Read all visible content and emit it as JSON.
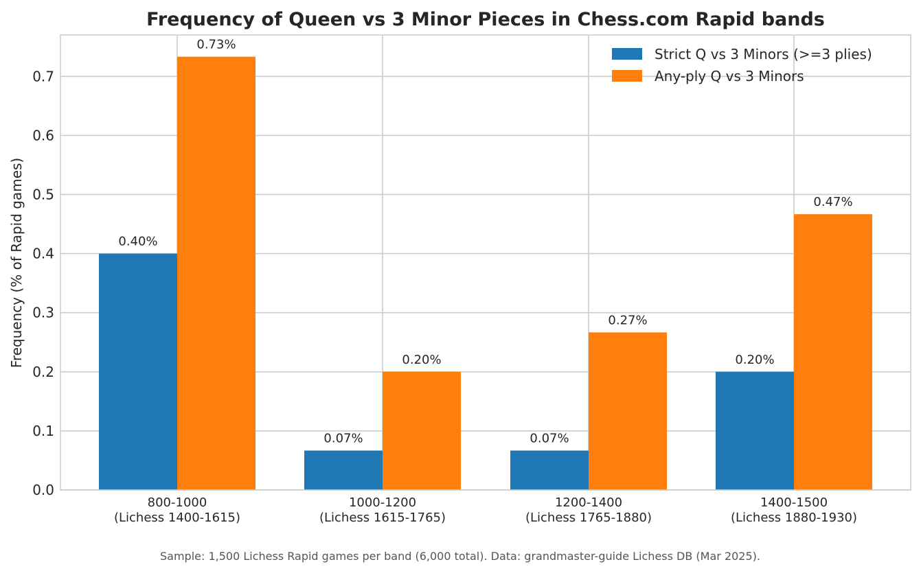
{
  "chart_data": {
    "type": "bar",
    "title": "Frequency of Queen vs 3 Minor Pieces in Chess.com Rapid bands",
    "xlabel": "",
    "ylabel": "Frequency (% of Rapid games)",
    "categories": [
      [
        "800-1000",
        "(Lichess 1400-1615)"
      ],
      [
        "1000-1200",
        "(Lichess 1615-1765)"
      ],
      [
        "1200-1400",
        "(Lichess 1765-1880)"
      ],
      [
        "1400-1500",
        "(Lichess 1880-1930)"
      ]
    ],
    "series": [
      {
        "name": "Strict Q vs 3 Minors (>=3 plies)",
        "color": "#1f77b4",
        "values": [
          0.4,
          0.0667,
          0.0667,
          0.2
        ],
        "labels": [
          "0.40%",
          "0.07%",
          "0.07%",
          "0.20%"
        ]
      },
      {
        "name": "Any-ply Q vs 3 Minors",
        "color": "#ff7f0e",
        "values": [
          0.7333,
          0.2,
          0.2667,
          0.4667
        ],
        "labels": [
          "0.73%",
          "0.20%",
          "0.27%",
          "0.47%"
        ]
      }
    ],
    "ylim": [
      0,
      0.77
    ],
    "yticks": [
      "0.0",
      "0.1",
      "0.2",
      "0.3",
      "0.4",
      "0.5",
      "0.6",
      "0.7"
    ],
    "grid": true,
    "legend_position": "top-right",
    "footnote": "Sample: 1,500 Lichess Rapid games per band (6,000 total).  Data: grandmaster-guide Lichess DB (Mar 2025)."
  }
}
